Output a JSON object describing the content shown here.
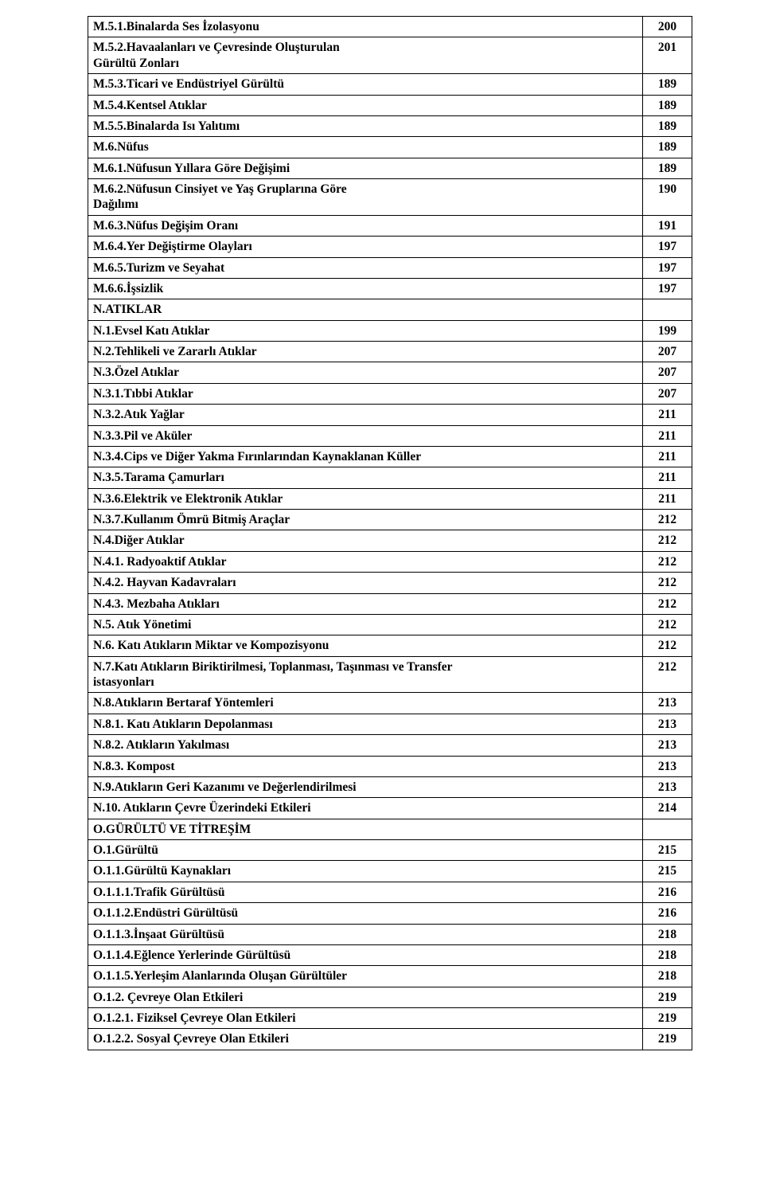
{
  "rows": [
    {
      "label": "M.5.1.Binalarda Ses İzolasyonu",
      "page": "200"
    },
    {
      "label": "M.5.2.Havaalanları ve Çevresinde Oluşturulan\nGürültü Zonları",
      "page": "201"
    },
    {
      "label": "M.5.3.Ticari ve Endüstriyel Gürültü",
      "page": "189"
    },
    {
      "label": "M.5.4.Kentsel Atıklar",
      "page": "189"
    },
    {
      "label": "M.5.5.Binalarda Isı Yalıtımı",
      "page": "189"
    },
    {
      "label": "M.6.Nüfus",
      "page": "189"
    },
    {
      "label": "M.6.1.Nüfusun Yıllara Göre Değişimi",
      "page": "189"
    },
    {
      "label": "M.6.2.Nüfusun Cinsiyet ve Yaş Gruplarına Göre\nDağılımı",
      "page": "190"
    },
    {
      "label": "M.6.3.Nüfus Değişim Oranı",
      "page": "191"
    },
    {
      "label": "M.6.4.Yer Değiştirme Olayları",
      "page": "197"
    },
    {
      "label": "M.6.5.Turizm ve Seyahat",
      "page": "197"
    },
    {
      "label": "M.6.6.İşsizlik",
      "page": "197"
    },
    {
      "label": "N.ATIKLAR",
      "page": ""
    },
    {
      "label": "N.1.Evsel Katı Atıklar",
      "page": "199"
    },
    {
      "label": "N.2.Tehlikeli ve Zararlı Atıklar",
      "page": "207"
    },
    {
      "label": "N.3.Özel Atıklar",
      "page": "207"
    },
    {
      "label": "N.3.1.Tıbbi Atıklar",
      "page": "207"
    },
    {
      "label": "N.3.2.Atık Yağlar",
      "page": "211"
    },
    {
      "label": "N.3.3.Pil ve Aküler",
      "page": "211"
    },
    {
      "label": "N.3.4.Cips ve Diğer Yakma Fırınlarından Kaynaklanan Küller",
      "page": "211"
    },
    {
      "label": "N.3.5.Tarama Çamurları",
      "page": "211"
    },
    {
      "label": "N.3.6.Elektrik ve Elektronik Atıklar",
      "page": "211"
    },
    {
      "label": "N.3.7.Kullanım Ömrü Bitmiş Araçlar",
      "page": "212"
    },
    {
      "label": "N.4.Diğer Atıklar",
      "page": "212"
    },
    {
      "label": "N.4.1. Radyoaktif Atıklar",
      "page": "212"
    },
    {
      "label": "N.4.2. Hayvan Kadavraları",
      "page": "212"
    },
    {
      "label": "N.4.3. Mezbaha Atıkları",
      "page": "212"
    },
    {
      "label": "N.5. Atık Yönetimi",
      "page": "212"
    },
    {
      "label": "N.6. Katı Atıkların Miktar ve Kompozisyonu",
      "page": "212"
    },
    {
      "label": "N.7.Katı Atıkların Biriktirilmesi, Toplanması, Taşınması ve Transfer\nistasyonları",
      "page": "212"
    },
    {
      "label": "N.8.Atıkların Bertaraf Yöntemleri",
      "page": "213"
    },
    {
      "label": "N.8.1. Katı Atıkların Depolanması",
      "page": "213"
    },
    {
      "label": "N.8.2. Atıkların Yakılması",
      "page": "213"
    },
    {
      "label": "N.8.3. Kompost",
      "page": "213"
    },
    {
      "label": "N.9.Atıkların Geri Kazanımı ve Değerlendirilmesi",
      "page": "213"
    },
    {
      "label": "N.10. Atıkların Çevre Üzerindeki Etkileri",
      "page": "214"
    },
    {
      "label": "O.GÜRÜLTÜ VE TİTREŞİM",
      "page": ""
    },
    {
      "label": "O.1.Gürültü",
      "page": "215"
    },
    {
      "label": "O.1.1.Gürültü Kaynakları",
      "page": "215"
    },
    {
      "label": "O.1.1.1.Trafik Gürültüsü",
      "page": "216"
    },
    {
      "label": "O.1.1.2.Endüstri Gürültüsü",
      "page": "216"
    },
    {
      "label": "O.1.1.3.İnşaat Gürültüsü",
      "page": "218"
    },
    {
      "label": "O.1.1.4.Eğlence Yerlerinde Gürültüsü",
      "page": "218"
    },
    {
      "label": "O.1.1.5.Yerleşim Alanlarında Oluşan Gürültüler",
      "page": "218"
    },
    {
      "label": "O.1.2. Çevreye Olan Etkileri",
      "page": "219"
    },
    {
      "label": "O.1.2.1. Fiziksel Çevreye Olan Etkileri",
      "page": "219"
    },
    {
      "label": "O.1.2.2. Sosyal Çevreye Olan Etkileri",
      "page": "219"
    }
  ]
}
